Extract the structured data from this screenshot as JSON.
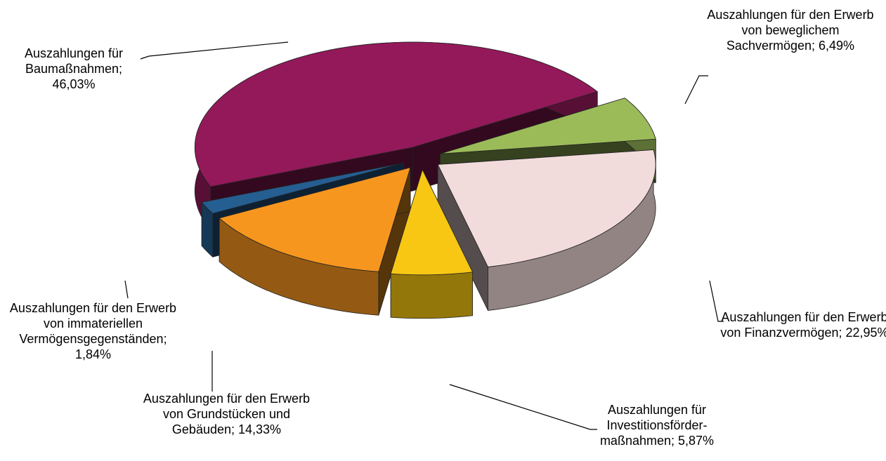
{
  "chart_data": {
    "type": "pie3d",
    "categories": [
      "Auszahlungen für den Erwerb von beweglichem Sachvermögen",
      "Auszahlungen für den Erwerb von Finanzvermögen",
      "Auszahlungen für Investitionsförder-maßnahmen",
      "Auszahlungen für den Erwerb von Grundstücken und Gebäuden",
      "Auszahlungen für den Erwerb von immateriellen Vermögensgegenständen",
      "Auszahlungen für Baumaßnahmen"
    ],
    "values": [
      6.49,
      22.95,
      5.87,
      14.33,
      1.84,
      46.03
    ],
    "value_labels": [
      "6,49%",
      "22,95%",
      "5,87%",
      "14,33%",
      "1,84%",
      "46,03%"
    ],
    "label_separator": "; ",
    "colors": [
      "#9bbb59",
      "#f2dcdb",
      "#f7c713",
      "#f7961f",
      "#255e91",
      "#93195a"
    ]
  }
}
